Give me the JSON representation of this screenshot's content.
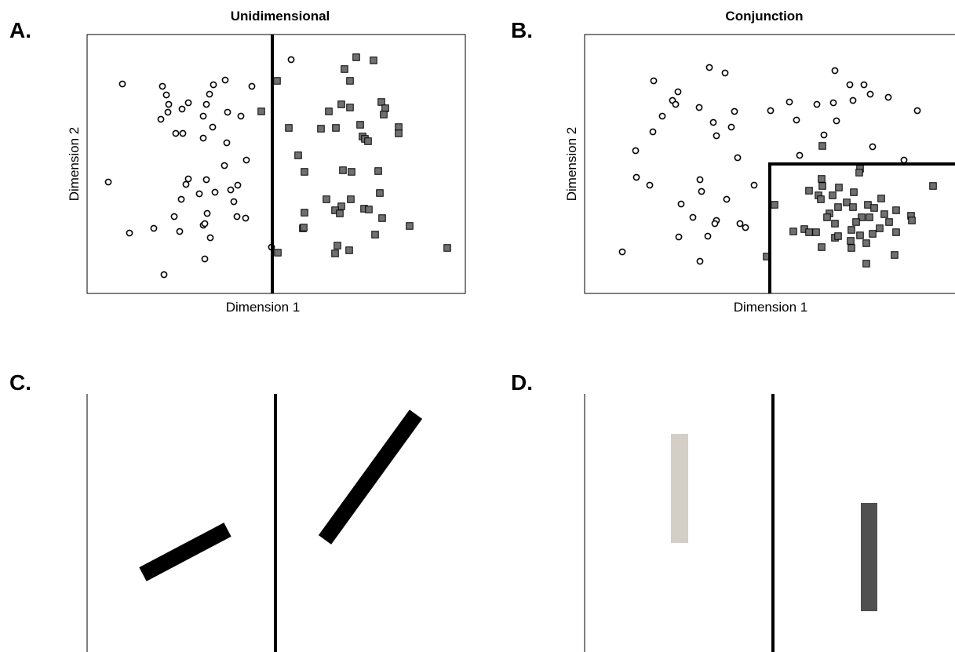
{
  "colors": {
    "square_fill": "#707070",
    "stimulus_black": "#000000",
    "stimulus_light": "#d3cfc7",
    "stimulus_dark": "#505050"
  },
  "panels": {
    "a": {
      "letter": "A.",
      "title": "Unidimensional",
      "xlabel": "Dimension 1",
      "ylabel": "Dimension 2",
      "circles": [
        [
          156,
          107
        ],
        [
          207,
          110
        ],
        [
          212,
          121
        ],
        [
          215,
          133
        ],
        [
          240,
          131
        ],
        [
          214,
          143
        ],
        [
          232,
          139
        ],
        [
          205,
          152
        ],
        [
          224,
          170
        ],
        [
          233,
          170
        ],
        [
          259,
          148
        ],
        [
          271,
          162
        ],
        [
          259,
          176
        ],
        [
          287,
          102
        ],
        [
          272,
          108
        ],
        [
          267,
          120
        ],
        [
          263,
          133
        ],
        [
          290,
          143
        ],
        [
          307,
          148
        ],
        [
          321,
          110
        ],
        [
          289,
          182
        ],
        [
          314,
          204
        ],
        [
          286,
          211
        ],
        [
          240,
          228
        ],
        [
          237,
          235
        ],
        [
          263,
          229
        ],
        [
          138,
          232
        ],
        [
          231,
          254
        ],
        [
          254,
          247
        ],
        [
          274,
          245
        ],
        [
          294,
          242
        ],
        [
          303,
          236
        ],
        [
          298,
          257
        ],
        [
          222,
          276
        ],
        [
          264,
          272
        ],
        [
          259,
          287
        ],
        [
          261,
          285
        ],
        [
          302,
          276
        ],
        [
          313,
          278
        ],
        [
          229,
          295
        ],
        [
          268,
          303
        ],
        [
          196,
          291
        ],
        [
          165,
          297
        ],
        [
          261,
          330
        ],
        [
          209,
          350
        ],
        [
          371,
          76
        ],
        [
          346,
          315
        ]
      ],
      "squares": [
        [
          454,
          73
        ],
        [
          476,
          77
        ],
        [
          439,
          88
        ],
        [
          353,
          103
        ],
        [
          446,
          103
        ],
        [
          333,
          142
        ],
        [
          435,
          133
        ],
        [
          446,
          137
        ],
        [
          486,
          130
        ],
        [
          491,
          138
        ],
        [
          489,
          146
        ],
        [
          419,
          142
        ],
        [
          368,
          163
        ],
        [
          409,
          164
        ],
        [
          428,
          163
        ],
        [
          459,
          159
        ],
        [
          508,
          162
        ],
        [
          508,
          170
        ],
        [
          462,
          174
        ],
        [
          465,
          177
        ],
        [
          469,
          180
        ],
        [
          380,
          198
        ],
        [
          388,
          219
        ],
        [
          437,
          217
        ],
        [
          448,
          219
        ],
        [
          482,
          218
        ],
        [
          484,
          246
        ],
        [
          416,
          254
        ],
        [
          447,
          254
        ],
        [
          388,
          271
        ],
        [
          435,
          263
        ],
        [
          427,
          268
        ],
        [
          433,
          272
        ],
        [
          464,
          266
        ],
        [
          470,
          267
        ],
        [
          487,
          278
        ],
        [
          386,
          291
        ],
        [
          387,
          290
        ],
        [
          522,
          288
        ],
        [
          478,
          299
        ],
        [
          430,
          313
        ],
        [
          427,
          323
        ],
        [
          445,
          319
        ],
        [
          354,
          322
        ],
        [
          570,
          316
        ]
      ]
    },
    "b": {
      "letter": "B.",
      "title": "Conjunction",
      "xlabel": "Dimension 1",
      "ylabel": "Dimension 2",
      "circles": [
        [
          904,
          86
        ],
        [
          924,
          93
        ],
        [
          1064,
          90
        ],
        [
          833,
          103
        ],
        [
          864,
          117
        ],
        [
          1083,
          108
        ],
        [
          1101,
          108
        ],
        [
          1109,
          120
        ],
        [
          1132,
          124
        ],
        [
          857,
          128
        ],
        [
          861,
          133
        ],
        [
          891,
          137
        ],
        [
          936,
          142
        ],
        [
          982,
          141
        ],
        [
          1006,
          130
        ],
        [
          1041,
          133
        ],
        [
          1062,
          131
        ],
        [
          1087,
          128
        ],
        [
          1169,
          141
        ],
        [
          844,
          148
        ],
        [
          909,
          156
        ],
        [
          932,
          162
        ],
        [
          913,
          173
        ],
        [
          1015,
          153
        ],
        [
          1066,
          154
        ],
        [
          832,
          168
        ],
        [
          1050,
          172
        ],
        [
          810,
          192
        ],
        [
          1019,
          198
        ],
        [
          940,
          201
        ],
        [
          1112,
          187
        ],
        [
          1152,
          204
        ],
        [
          811,
          226
        ],
        [
          828,
          236
        ],
        [
          892,
          229
        ],
        [
          894,
          244
        ],
        [
          961,
          236
        ],
        [
          926,
          254
        ],
        [
          868,
          260
        ],
        [
          883,
          277
        ],
        [
          913,
          281
        ],
        [
          911,
          285
        ],
        [
          943,
          285
        ],
        [
          950,
          290
        ],
        [
          902,
          301
        ],
        [
          865,
          302
        ],
        [
          793,
          321
        ],
        [
          892,
          333
        ]
      ],
      "squares": [
        [
          1048,
          186
        ],
        [
          1096,
          215
        ],
        [
          1095,
          220
        ],
        [
          1047,
          228
        ],
        [
          1048,
          237
        ],
        [
          1069,
          239
        ],
        [
          1031,
          243
        ],
        [
          1043,
          249
        ],
        [
          1061,
          249
        ],
        [
          1088,
          245
        ],
        [
          1123,
          253
        ],
        [
          1046,
          254
        ],
        [
          1079,
          258
        ],
        [
          1068,
          264
        ],
        [
          1087,
          264
        ],
        [
          1106,
          261
        ],
        [
          1114,
          265
        ],
        [
          1142,
          268
        ],
        [
          1057,
          272
        ],
        [
          1127,
          273
        ],
        [
          1054,
          277
        ],
        [
          1098,
          277
        ],
        [
          1108,
          277
        ],
        [
          1161,
          275
        ],
        [
          1162,
          281
        ],
        [
          1064,
          285
        ],
        [
          1091,
          283
        ],
        [
          1133,
          283
        ],
        [
          1121,
          291
        ],
        [
          1011,
          295
        ],
        [
          1025,
          292
        ],
        [
          1031,
          296
        ],
        [
          1040,
          296
        ],
        [
          1085,
          293
        ],
        [
          1142,
          296
        ],
        [
          1064,
          303
        ],
        [
          1068,
          301
        ],
        [
          1084,
          307
        ],
        [
          1096,
          300
        ],
        [
          1112,
          298
        ],
        [
          1085,
          316
        ],
        [
          1047,
          315
        ],
        [
          1104,
          310
        ],
        [
          1140,
          325
        ],
        [
          1104,
          336
        ],
        [
          987,
          261
        ],
        [
          977,
          327
        ],
        [
          1189,
          237
        ]
      ]
    },
    "c": {
      "letter": "C."
    },
    "d": {
      "letter": "D."
    }
  }
}
